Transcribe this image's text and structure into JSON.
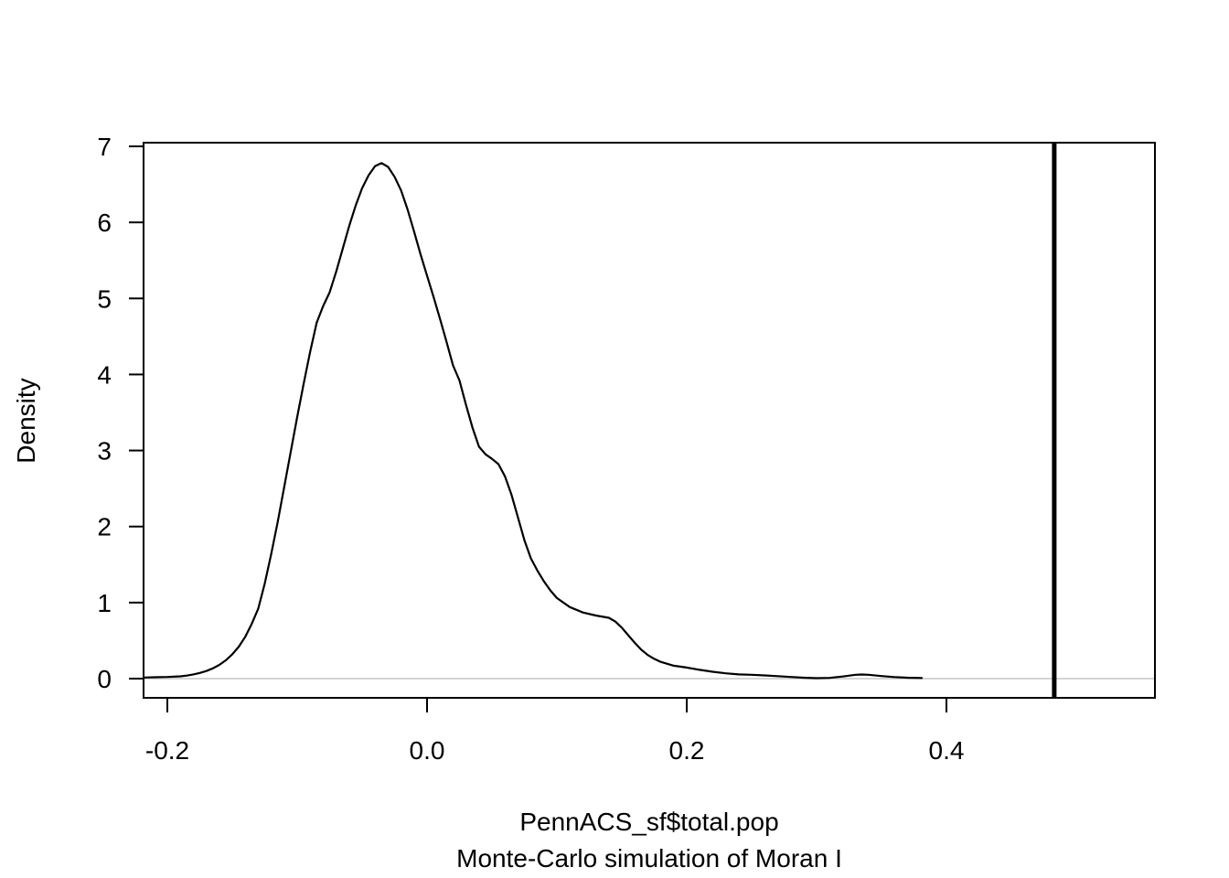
{
  "figure": {
    "background_color": "#ffffff",
    "axis_color": "#000000",
    "text_color": "#000000"
  },
  "chart_data": {
    "type": "line",
    "subtype": "kernel-density",
    "title": "",
    "xlabel_line1": "PennACS_sf$total.pop",
    "xlabel_line2": "Monte-Carlo simulation of Moran I",
    "ylabel": "Density",
    "xlim": [
      -0.218,
      0.561
    ],
    "ylim": [
      -0.25,
      7.05
    ],
    "grid": "off",
    "legend": "none",
    "x_ticks": [
      {
        "value": -0.2,
        "label": "-0.2"
      },
      {
        "value": 0.0,
        "label": "0.0"
      },
      {
        "value": 0.2,
        "label": "0.2"
      },
      {
        "value": 0.4,
        "label": "0.4"
      }
    ],
    "y_ticks": [
      {
        "value": 0,
        "label": "0"
      },
      {
        "value": 1,
        "label": "1"
      },
      {
        "value": 2,
        "label": "2"
      },
      {
        "value": 3,
        "label": "3"
      },
      {
        "value": 4,
        "label": "4"
      },
      {
        "value": 5,
        "label": "5"
      },
      {
        "value": 6,
        "label": "6"
      },
      {
        "value": 7,
        "label": "7"
      }
    ],
    "series": [
      {
        "name": "simulated-moran-i-density",
        "color": "#000000",
        "stroke_width": 2.2,
        "points": [
          [
            -0.218,
            0.015
          ],
          [
            -0.21,
            0.018
          ],
          [
            -0.2,
            0.022
          ],
          [
            -0.19,
            0.03
          ],
          [
            -0.185,
            0.04
          ],
          [
            -0.18,
            0.055
          ],
          [
            -0.175,
            0.075
          ],
          [
            -0.17,
            0.1
          ],
          [
            -0.165,
            0.135
          ],
          [
            -0.16,
            0.18
          ],
          [
            -0.155,
            0.24
          ],
          [
            -0.15,
            0.32
          ],
          [
            -0.145,
            0.42
          ],
          [
            -0.14,
            0.55
          ],
          [
            -0.135,
            0.72
          ],
          [
            -0.13,
            0.92
          ],
          [
            -0.125,
            1.25
          ],
          [
            -0.12,
            1.64
          ],
          [
            -0.115,
            2.06
          ],
          [
            -0.11,
            2.52
          ],
          [
            -0.105,
            2.98
          ],
          [
            -0.1,
            3.44
          ],
          [
            -0.095,
            3.88
          ],
          [
            -0.09,
            4.3
          ],
          [
            -0.085,
            4.68
          ],
          [
            -0.08,
            4.9
          ],
          [
            -0.075,
            5.08
          ],
          [
            -0.07,
            5.35
          ],
          [
            -0.065,
            5.65
          ],
          [
            -0.06,
            5.95
          ],
          [
            -0.055,
            6.22
          ],
          [
            -0.05,
            6.45
          ],
          [
            -0.045,
            6.62
          ],
          [
            -0.04,
            6.74
          ],
          [
            -0.035,
            6.78
          ],
          [
            -0.03,
            6.73
          ],
          [
            -0.025,
            6.6
          ],
          [
            -0.02,
            6.42
          ],
          [
            -0.015,
            6.17
          ],
          [
            -0.01,
            5.88
          ],
          [
            -0.005,
            5.58
          ],
          [
            0.0,
            5.3
          ],
          [
            0.005,
            5.02
          ],
          [
            0.01,
            4.73
          ],
          [
            0.015,
            4.43
          ],
          [
            0.02,
            4.12
          ],
          [
            0.025,
            3.92
          ],
          [
            0.03,
            3.6
          ],
          [
            0.035,
            3.3
          ],
          [
            0.04,
            3.05
          ],
          [
            0.045,
            2.95
          ],
          [
            0.05,
            2.89
          ],
          [
            0.055,
            2.82
          ],
          [
            0.06,
            2.66
          ],
          [
            0.065,
            2.42
          ],
          [
            0.07,
            2.12
          ],
          [
            0.075,
            1.82
          ],
          [
            0.08,
            1.58
          ],
          [
            0.085,
            1.42
          ],
          [
            0.09,
            1.28
          ],
          [
            0.095,
            1.16
          ],
          [
            0.1,
            1.06
          ],
          [
            0.11,
            0.94
          ],
          [
            0.12,
            0.87
          ],
          [
            0.13,
            0.83
          ],
          [
            0.14,
            0.8
          ],
          [
            0.145,
            0.75
          ],
          [
            0.15,
            0.67
          ],
          [
            0.155,
            0.57
          ],
          [
            0.16,
            0.47
          ],
          [
            0.165,
            0.38
          ],
          [
            0.17,
            0.31
          ],
          [
            0.175,
            0.26
          ],
          [
            0.18,
            0.22
          ],
          [
            0.19,
            0.17
          ],
          [
            0.2,
            0.145
          ],
          [
            0.21,
            0.115
          ],
          [
            0.22,
            0.09
          ],
          [
            0.23,
            0.07
          ],
          [
            0.24,
            0.055
          ],
          [
            0.25,
            0.05
          ],
          [
            0.26,
            0.042
          ],
          [
            0.27,
            0.032
          ],
          [
            0.28,
            0.022
          ],
          [
            0.29,
            0.012
          ],
          [
            0.3,
            0.006
          ],
          [
            0.31,
            0.01
          ],
          [
            0.32,
            0.028
          ],
          [
            0.33,
            0.05
          ],
          [
            0.335,
            0.054
          ],
          [
            0.34,
            0.05
          ],
          [
            0.35,
            0.034
          ],
          [
            0.36,
            0.02
          ],
          [
            0.37,
            0.012
          ],
          [
            0.381,
            0.008
          ]
        ]
      }
    ],
    "observed_line": {
      "name": "observed-moran-i",
      "value": 0.483,
      "color": "#000000",
      "stroke_width": 5
    },
    "zero_line": {
      "y": 0,
      "color": "#d4d4d4",
      "stroke_width": 2
    }
  }
}
